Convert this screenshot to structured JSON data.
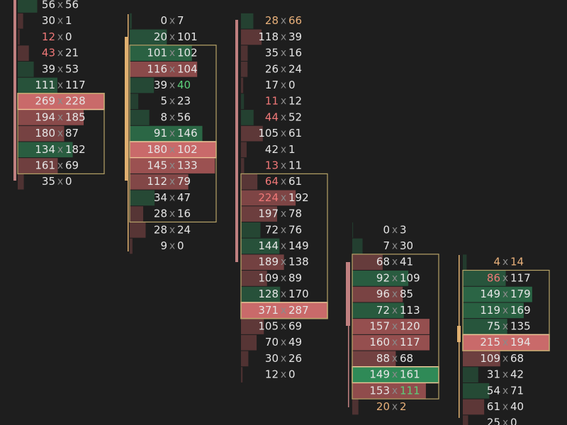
{
  "separator": "x",
  "columns": [
    {
      "first_row": 0,
      "value_area": [
        6,
        10
      ],
      "rows": [
        {
          "bid": 56,
          "ask": 56
        },
        {
          "bid": 30,
          "ask": 1
        },
        {
          "bid": 12,
          "ask": 0,
          "highlight": "bid"
        },
        {
          "bid": 43,
          "ask": 21,
          "highlight": "bid"
        },
        {
          "bid": 39,
          "ask": 53
        },
        {
          "bid": 111,
          "ask": 117
        },
        {
          "bid": 269,
          "ask": 228,
          "poc": true
        },
        {
          "bid": 194,
          "ask": 185
        },
        {
          "bid": 180,
          "ask": 87
        },
        {
          "bid": 134,
          "ask": 182
        },
        {
          "bid": 161,
          "ask": 69
        },
        {
          "bid": 35,
          "ask": 0
        }
      ]
    },
    {
      "first_row": 1,
      "value_area": [
        3,
        13
      ],
      "rows": [
        {
          "bid": 0,
          "ask": 7
        },
        {
          "bid": 20,
          "ask": 101
        },
        {
          "bid": 101,
          "ask": 102
        },
        {
          "bid": 116,
          "ask": 104
        },
        {
          "bid": 39,
          "ask": 40,
          "highlight": "ask"
        },
        {
          "bid": 5,
          "ask": 23
        },
        {
          "bid": 8,
          "ask": 56
        },
        {
          "bid": 91,
          "ask": 146
        },
        {
          "bid": 180,
          "ask": 102,
          "poc": true
        },
        {
          "bid": 145,
          "ask": 133
        },
        {
          "bid": 112,
          "ask": 79
        },
        {
          "bid": 34,
          "ask": 47
        },
        {
          "bid": 28,
          "ask": 16
        },
        {
          "bid": 28,
          "ask": 24
        },
        {
          "bid": 9,
          "ask": 0
        }
      ]
    },
    {
      "first_row": 1,
      "value_area": [
        11,
        19
      ],
      "rows": [
        {
          "bid": 28,
          "ask": 66,
          "highlight": "both"
        },
        {
          "bid": 118,
          "ask": 39
        },
        {
          "bid": 35,
          "ask": 16
        },
        {
          "bid": 26,
          "ask": 24
        },
        {
          "bid": 17,
          "ask": 0
        },
        {
          "bid": 11,
          "ask": 12,
          "highlight": "bid"
        },
        {
          "bid": 44,
          "ask": 52,
          "highlight": "bid"
        },
        {
          "bid": 105,
          "ask": 61
        },
        {
          "bid": 42,
          "ask": 1
        },
        {
          "bid": 13,
          "ask": 11,
          "highlight": "bid"
        },
        {
          "bid": 64,
          "ask": 61,
          "highlight": "bid"
        },
        {
          "bid": 224,
          "ask": 192,
          "highlight": "bid"
        },
        {
          "bid": 197,
          "ask": 78
        },
        {
          "bid": 72,
          "ask": 76
        },
        {
          "bid": 144,
          "ask": 149
        },
        {
          "bid": 189,
          "ask": 138
        },
        {
          "bid": 109,
          "ask": 89
        },
        {
          "bid": 128,
          "ask": 170
        },
        {
          "bid": 371,
          "ask": 287,
          "poc": true
        },
        {
          "bid": 105,
          "ask": 69
        },
        {
          "bid": 70,
          "ask": 49
        },
        {
          "bid": 30,
          "ask": 26
        },
        {
          "bid": 12,
          "ask": 0
        }
      ]
    },
    {
      "first_row": 14,
      "value_area": [
        16,
        24
      ],
      "rows": [
        {
          "bid": 0,
          "ask": 3
        },
        {
          "bid": 7,
          "ask": 30
        },
        {
          "bid": 68,
          "ask": 41
        },
        {
          "bid": 92,
          "ask": 109
        },
        {
          "bid": 96,
          "ask": 85
        },
        {
          "bid": 72,
          "ask": 113
        },
        {
          "bid": 157,
          "ask": 120
        },
        {
          "bid": 160,
          "ask": 117
        },
        {
          "bid": 88,
          "ask": 68
        },
        {
          "bid": 149,
          "ask": 161,
          "poc": true
        },
        {
          "bid": 153,
          "ask": 111,
          "highlight": "ask"
        },
        {
          "bid": 20,
          "ask": 2,
          "highlight": "both"
        }
      ]
    },
    {
      "first_row": 16,
      "value_area": [
        17,
        21
      ],
      "rows": [
        {
          "bid": 4,
          "ask": 14,
          "highlight": "both"
        },
        {
          "bid": 86,
          "ask": 117,
          "highlight": "bid"
        },
        {
          "bid": 149,
          "ask": 179
        },
        {
          "bid": 119,
          "ask": 169
        },
        {
          "bid": 75,
          "ask": 135
        },
        {
          "bid": 215,
          "ask": 194,
          "poc": true
        },
        {
          "bid": 109,
          "ask": 68
        },
        {
          "bid": 31,
          "ask": 42
        },
        {
          "bid": 54,
          "ask": 71
        },
        {
          "bid": 61,
          "ask": 40
        },
        {
          "bid": 25,
          "ask": 0
        }
      ]
    }
  ]
}
